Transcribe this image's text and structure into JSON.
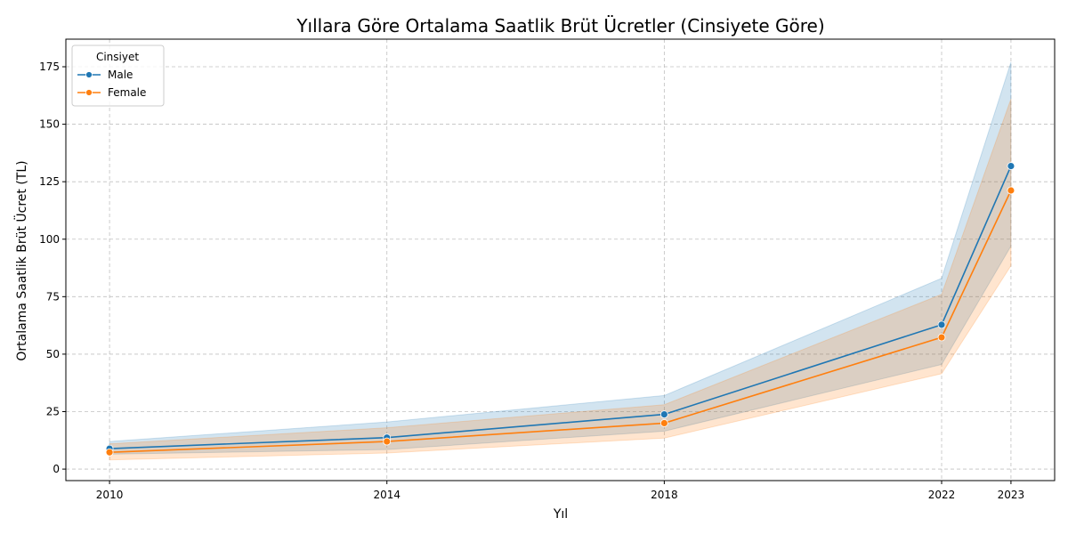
{
  "chart_data": {
    "type": "line",
    "title": "Yıllara Göre Ortalama Saatlik Brüt Ücretler (Cinsiyete Göre)",
    "xlabel": "Yıl",
    "ylabel": "Ortalama Saatlik Brüt Ücret (TL)",
    "x": [
      2010,
      2014,
      2018,
      2022,
      2023
    ],
    "x_tick_labels": [
      "2010",
      "2014",
      "2018",
      "2022",
      "2023"
    ],
    "xlim": [
      2009.37,
      2023.63
    ],
    "ylim": [
      -5,
      187
    ],
    "y_ticks": [
      0,
      25,
      50,
      75,
      100,
      125,
      150,
      175
    ],
    "y_tick_labels": [
      "0",
      "25",
      "50",
      "75",
      "100",
      "125",
      "150",
      "175"
    ],
    "grid": true,
    "legend": {
      "title": "Cinsiyet",
      "placement": "top-left"
    },
    "series": [
      {
        "name": "Male",
        "color": "#1f77b4",
        "values": [
          8.9,
          13.7,
          23.8,
          62.8,
          131.8
        ],
        "ci_lower": [
          6.5,
          8.5,
          16.5,
          45.5,
          97.0
        ],
        "ci_upper": [
          12.0,
          20.5,
          32.0,
          83.0,
          177.0
        ]
      },
      {
        "name": "Female",
        "color": "#ff7f0e",
        "values": [
          7.3,
          12.0,
          20.0,
          57.3,
          121.2
        ],
        "ci_lower": [
          4.0,
          7.0,
          13.5,
          41.5,
          88.5
        ],
        "ci_upper": [
          11.0,
          18.0,
          28.0,
          76.0,
          161.0
        ]
      }
    ]
  }
}
